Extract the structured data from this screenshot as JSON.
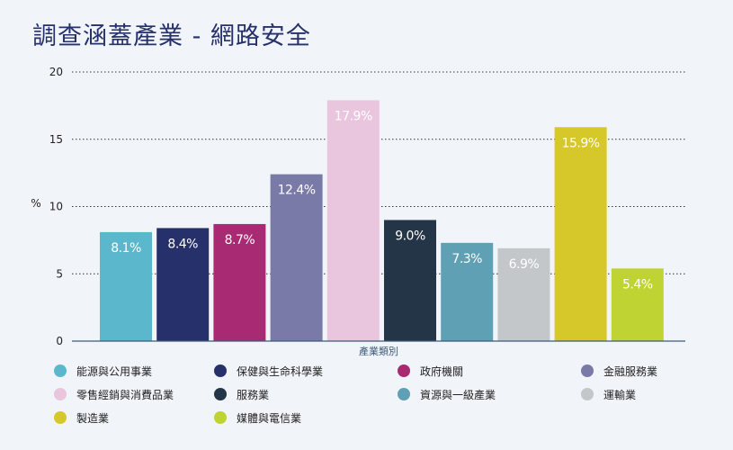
{
  "title": "調查涵蓋產業 - 網路安全",
  "chart_data": {
    "type": "bar",
    "title": "調查涵蓋產業 - 網路安全",
    "xlabel": "產業類別",
    "ylabel": "%",
    "ylim": [
      0,
      20
    ],
    "yticks": [
      0,
      5,
      10,
      15,
      20
    ],
    "grid": true,
    "legend_position": "bottom",
    "categories": [
      "能源與公用事業",
      "保健與生命科學業",
      "政府機關",
      "金融服務業",
      "零售經銷與消費品業",
      "服務業",
      "資源與一級產業",
      "運輸業",
      "製造業",
      "媒體與電信業"
    ],
    "values": [
      8.1,
      8.4,
      8.7,
      12.4,
      17.9,
      9.0,
      7.3,
      6.9,
      15.9,
      5.4
    ],
    "data_labels": [
      "8.1%",
      "8.4%",
      "8.7%",
      "12.4%",
      "17.9%",
      "9.0%",
      "7.3%",
      "6.9%",
      "15.9%",
      "5.4%"
    ],
    "colors": [
      "#5bb8cc",
      "#26306b",
      "#a82a72",
      "#7a7aa8",
      "#e9c5de",
      "#233547",
      "#5fa0b4",
      "#c3c7ca",
      "#d6c72a",
      "#bfd332"
    ]
  },
  "legend": [
    {
      "label": "能源與公用事業",
      "color": "#5bb8cc"
    },
    {
      "label": "保健與生命科學業",
      "color": "#26306b"
    },
    {
      "label": "政府機關",
      "color": "#a82a72"
    },
    {
      "label": "金融服務業",
      "color": "#7a7aa8"
    },
    {
      "label": "零售經銷與消費品業",
      "color": "#e9c5de"
    },
    {
      "label": "服務業",
      "color": "#233547"
    },
    {
      "label": "資源與一級產業",
      "color": "#5fa0b4"
    },
    {
      "label": "運輸業",
      "color": "#c3c7ca"
    },
    {
      "label": "製造業",
      "color": "#d6c72a"
    },
    {
      "label": "媒體與電信業",
      "color": "#bfd332"
    }
  ]
}
